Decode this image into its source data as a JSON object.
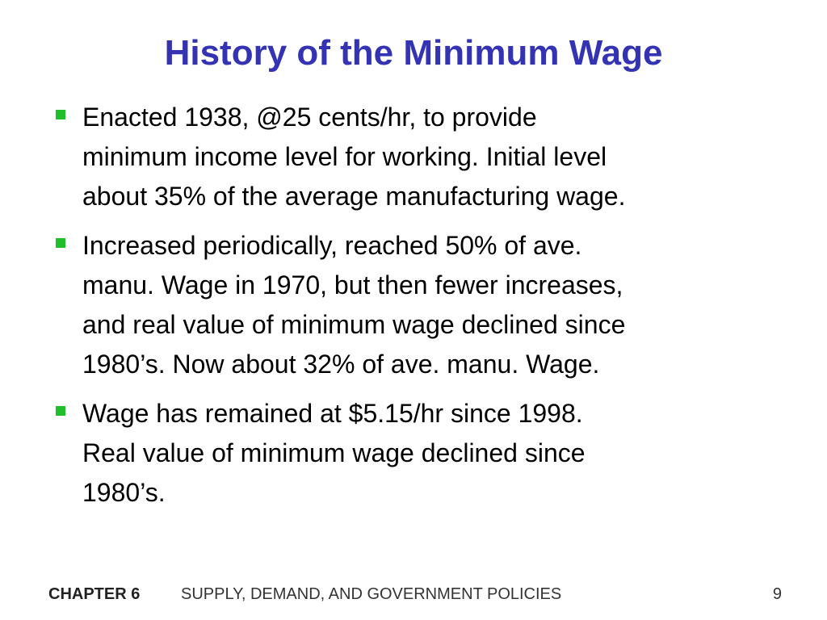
{
  "slide": {
    "title": "History of the Minimum Wage",
    "bullets": [
      {
        "text": "Enacted 1938, @25 cents/hr, to provide\nminimum income level for working.  Initial level\nabout 35% of the average manufacturing wage."
      },
      {
        "text": "Increased periodically, reached 50% of ave.\nmanu. Wage in 1970, but then fewer increases,\nand real value of minimum wage declined since\n1980’s.  Now about 32% of ave. manu. Wage."
      },
      {
        "text": "Wage has remained at $5.15/hr since 1998.\nReal value of minimum wage declined since\n1980’s."
      }
    ],
    "bullet_color": "#1fbf2a",
    "title_color": "#3333b3"
  },
  "footer": {
    "chapter": "CHAPTER 6",
    "subject": "SUPPLY, DEMAND, AND GOVERNMENT POLICIES",
    "page_number": "9"
  }
}
